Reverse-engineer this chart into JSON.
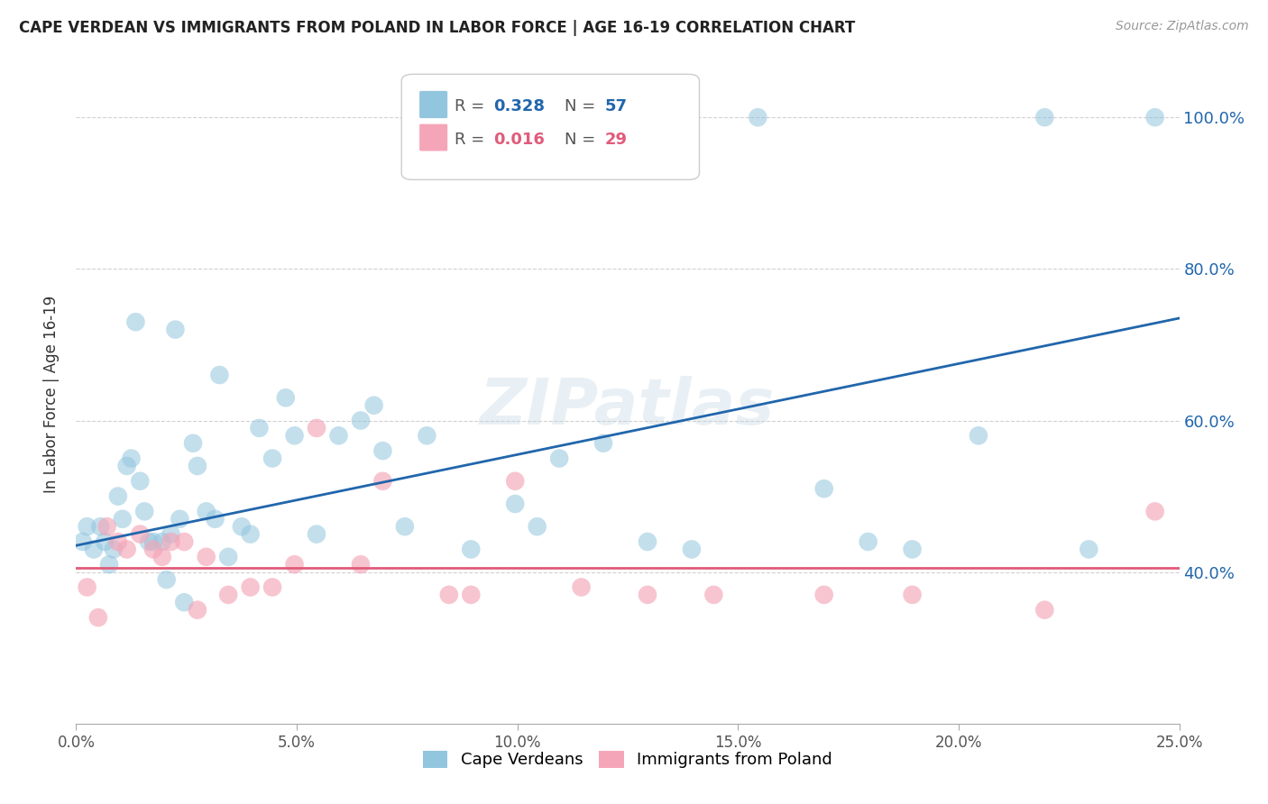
{
  "title": "CAPE VERDEAN VS IMMIGRANTS FROM POLAND IN LABOR FORCE | AGE 16-19 CORRELATION CHART",
  "source": "Source: ZipAtlas.com",
  "ylabel": "In Labor Force | Age 16-19",
  "xlabel_vals": [
    0.0,
    5.0,
    10.0,
    15.0,
    20.0,
    25.0
  ],
  "ylabel_ticks": [
    40,
    60,
    80,
    100
  ],
  "xmin": 0.0,
  "xmax": 25.0,
  "ymin": 20.0,
  "ymax": 107.0,
  "legend1_label": "Cape Verdeans",
  "legend2_label": "Immigrants from Poland",
  "R1": "0.328",
  "N1": "57",
  "R2": "0.016",
  "N2": "29",
  "blue_color": "#92c5de",
  "pink_color": "#f4a6b8",
  "blue_line_color": "#2166ac",
  "pink_line_color": "#e05c7a",
  "scatter1_x": [
    0.15,
    0.25,
    0.4,
    0.55,
    0.65,
    0.75,
    0.85,
    0.95,
    1.05,
    1.15,
    1.25,
    1.45,
    1.55,
    1.65,
    1.75,
    1.95,
    2.05,
    2.15,
    2.35,
    2.45,
    2.65,
    2.75,
    2.95,
    3.15,
    3.45,
    3.75,
    3.95,
    4.15,
    4.45,
    4.95,
    5.45,
    5.95,
    6.45,
    6.95,
    7.45,
    7.95,
    8.95,
    9.95,
    10.45,
    10.95,
    11.95,
    12.95,
    13.95,
    15.45,
    16.95,
    17.95,
    18.95,
    20.45,
    21.95,
    22.95,
    24.45,
    1.35,
    2.25,
    3.25,
    4.75,
    6.75,
    8.45
  ],
  "scatter1_y": [
    44,
    46,
    43,
    46,
    44,
    41,
    43,
    50,
    47,
    54,
    55,
    52,
    48,
    44,
    44,
    44,
    39,
    45,
    47,
    36,
    57,
    54,
    48,
    47,
    42,
    46,
    45,
    59,
    55,
    58,
    45,
    58,
    60,
    56,
    46,
    58,
    43,
    49,
    46,
    55,
    57,
    44,
    43,
    100,
    51,
    44,
    43,
    58,
    100,
    43,
    100,
    73,
    72,
    66,
    63,
    62,
    100
  ],
  "scatter2_x": [
    0.25,
    0.5,
    0.7,
    0.95,
    1.15,
    1.45,
    1.75,
    1.95,
    2.15,
    2.45,
    2.75,
    2.95,
    3.45,
    3.95,
    4.45,
    4.95,
    5.45,
    6.45,
    6.95,
    8.45,
    8.95,
    9.95,
    11.45,
    12.95,
    14.45,
    16.95,
    18.95,
    21.95,
    24.45
  ],
  "scatter2_y": [
    38,
    34,
    46,
    44,
    43,
    45,
    43,
    42,
    44,
    44,
    35,
    42,
    37,
    38,
    38,
    41,
    59,
    41,
    52,
    37,
    37,
    52,
    38,
    37,
    37,
    37,
    37,
    35,
    48
  ],
  "blue_trend_x": [
    0.0,
    25.0
  ],
  "blue_trend_y": [
    43.5,
    73.5
  ],
  "pink_trend_x": [
    0.0,
    25.0
  ],
  "pink_trend_y": [
    40.5,
    40.5
  ],
  "watermark": "ZIPatlas",
  "bg_color": "#ffffff",
  "grid_color": "#cccccc"
}
